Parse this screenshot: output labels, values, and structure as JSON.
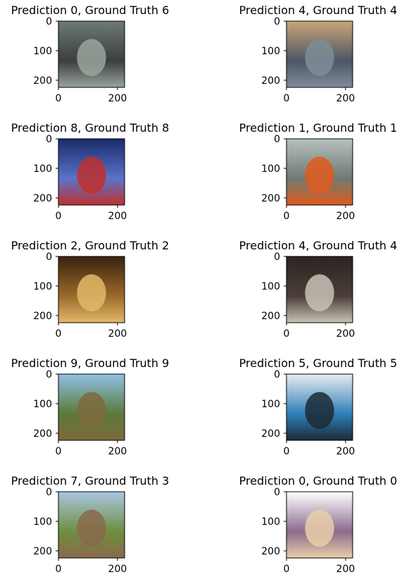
{
  "chart_data": {
    "type": "image-grid",
    "rows": 5,
    "cols": 2,
    "image_size": 224,
    "xticks": [
      0,
      200
    ],
    "yticks": [
      0,
      100,
      200
    ],
    "panels": [
      {
        "title": "Prediction 0, Ground Truth 6",
        "prediction": 0,
        "ground_truth": 6,
        "image": "man-playing-fiddle-on-bench",
        "colors": [
          "#6e7a78",
          "#3a3f3e",
          "#9aa49e"
        ]
      },
      {
        "title": "Prediction 4, Ground Truth 4",
        "prediction": 4,
        "ground_truth": 4,
        "image": "street-band-near-building",
        "colors": [
          "#c9a47a",
          "#4c5663",
          "#7f8c99"
        ]
      },
      {
        "title": "Prediction 8, Ground Truth 8",
        "prediction": 8,
        "ground_truth": 8,
        "image": "hot-air-balloon-in-sky",
        "colors": [
          "#1b2a6b",
          "#5a73c9",
          "#c0302e"
        ]
      },
      {
        "title": "Prediction 1, Ground Truth 1",
        "prediction": 1,
        "ground_truth": 1,
        "image": "chainsaw-on-ground",
        "colors": [
          "#b8c0bf",
          "#6f7a73",
          "#e05a1c"
        ]
      },
      {
        "title": "Prediction 2, Ground Truth 2",
        "prediction": 2,
        "ground_truth": 2,
        "image": "church-interior-altar",
        "colors": [
          "#3a2110",
          "#9a6a2c",
          "#e2b868"
        ]
      },
      {
        "title": "Prediction 4, Ground Truth 4",
        "prediction": 4,
        "ground_truth": 4,
        "image": "french-horn",
        "colors": [
          "#2b2421",
          "#4a3f39",
          "#c9c2b5"
        ]
      },
      {
        "title": "Prediction 9, Ground Truth 9",
        "prediction": 9,
        "ground_truth": 9,
        "image": "man-holding-fish",
        "colors": [
          "#8fc0e6",
          "#5b7a3a",
          "#7d6a3c"
        ]
      },
      {
        "title": "Prediction 5, Ground Truth 5",
        "prediction": 5,
        "ground_truth": 5,
        "image": "blue-garbage-truck",
        "colors": [
          "#e8ecef",
          "#2f7fb8",
          "#1c2a36"
        ]
      },
      {
        "title": "Prediction 7, Ground Truth 3",
        "prediction": 7,
        "ground_truth": 3,
        "image": "dog-in-grass-field",
        "colors": [
          "#a9c6e3",
          "#6e8e3f",
          "#8a6a4b"
        ]
      },
      {
        "title": "Prediction 0, Ground Truth 0",
        "prediction": 0,
        "ground_truth": 0,
        "image": "cassette-player",
        "colors": [
          "#ffffff",
          "#8a6b8e",
          "#e8cfa8"
        ]
      }
    ]
  }
}
